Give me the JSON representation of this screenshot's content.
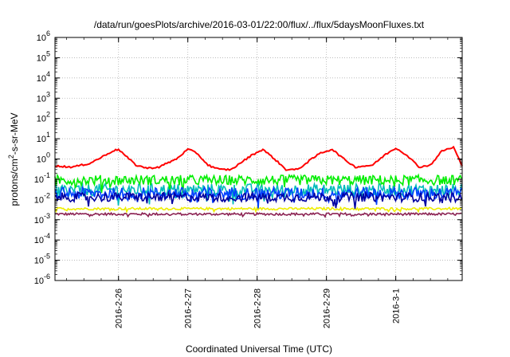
{
  "chart_data": {
    "type": "line",
    "title": "/data/run/goesPlots/archive/2016-03-01/22:00/flux/../flux/5daysMoonFluxes.txt",
    "xlabel": "Coordinated Universal Time (UTC)",
    "ylabel": {
      "base": "protons/cm",
      "sup": "2",
      "rest": "-s-sr-MeV"
    },
    "yscale": "log",
    "ylim": [
      1e-06,
      1000000.0
    ],
    "xlim": [
      "2016-02-25 02:00",
      "2016-03-01 23:00"
    ],
    "x_ticks": [
      "2016-2-26",
      "2016-2-27",
      "2016-2-28",
      "2016-2-29",
      "2016-3-1"
    ],
    "y_ticks": [
      {
        "base": "10",
        "exp": "-6",
        "value": 1e-06
      },
      {
        "base": "10",
        "exp": "-5",
        "value": 1e-05
      },
      {
        "base": "10",
        "exp": "-4",
        "value": 0.0001
      },
      {
        "base": "10",
        "exp": "-3",
        "value": 0.001
      },
      {
        "base": "10",
        "exp": "-2",
        "value": 0.01
      },
      {
        "base": "10",
        "exp": "-1",
        "value": 0.1
      },
      {
        "base": "10",
        "exp": "0",
        "value": 1
      },
      {
        "base": "10",
        "exp": "1",
        "value": 10
      },
      {
        "base": "10",
        "exp": "2",
        "value": 100
      },
      {
        "base": "10",
        "exp": "3",
        "value": 1000
      },
      {
        "base": "10",
        "exp": "4",
        "value": 10000
      },
      {
        "base": "10",
        "exp": "5",
        "value": 100000
      },
      {
        "base": "10",
        "exp": "6",
        "value": 1000000
      }
    ],
    "grid": true,
    "legend": "none",
    "series": [
      {
        "color": "#ff0000",
        "points": [
          [
            "2016-02-25 02:00",
            0.45
          ],
          [
            "2016-02-25 08:00",
            0.4
          ],
          [
            "2016-02-25 14:00",
            0.6
          ],
          [
            "2016-02-25 18:00",
            1.2
          ],
          [
            "2016-02-25 22:00",
            2.5
          ],
          [
            "2016-02-26 00:00",
            3.0
          ],
          [
            "2016-02-26 03:00",
            1.2
          ],
          [
            "2016-02-26 06:00",
            0.5
          ],
          [
            "2016-02-26 10:00",
            0.35
          ],
          [
            "2016-02-26 14:00",
            0.4
          ],
          [
            "2016-02-26 20:00",
            1.0
          ],
          [
            "2016-02-27 00:00",
            3.0
          ],
          [
            "2016-02-27 03:00",
            2.0
          ],
          [
            "2016-02-27 07:00",
            0.5
          ],
          [
            "2016-02-27 11:00",
            0.3
          ],
          [
            "2016-02-27 15:00",
            0.3
          ],
          [
            "2016-02-27 18:00",
            0.6
          ],
          [
            "2016-02-27 22:00",
            1.5
          ],
          [
            "2016-02-28 02:00",
            3.0
          ],
          [
            "2016-02-28 06:00",
            1.0
          ],
          [
            "2016-02-28 10:00",
            0.3
          ],
          [
            "2016-02-28 14:00",
            0.3
          ],
          [
            "2016-02-28 18:00",
            0.8
          ],
          [
            "2016-02-28 22:00",
            2.0
          ],
          [
            "2016-02-29 02:00",
            3.0
          ],
          [
            "2016-02-29 06:00",
            1.0
          ],
          [
            "2016-02-29 10:00",
            0.4
          ],
          [
            "2016-02-29 16:00",
            0.5
          ],
          [
            "2016-02-29 20:00",
            1.5
          ],
          [
            "2016-03-01 00:00",
            3.5
          ],
          [
            "2016-03-01 04:00",
            1.5
          ],
          [
            "2016-03-01 08:00",
            0.4
          ],
          [
            "2016-03-01 12:00",
            0.5
          ],
          [
            "2016-03-01 16:00",
            2.5
          ],
          [
            "2016-03-01 20:00",
            3.8
          ],
          [
            "2016-03-01 23:00",
            0.45
          ]
        ]
      },
      {
        "color": "#00ee00",
        "level": 0.09,
        "spread": 0.5
      },
      {
        "color": "#00bbbb",
        "level": 0.03,
        "spread": 0.6
      },
      {
        "color": "#0040ff",
        "level": 0.02,
        "spread": 0.6
      },
      {
        "color": "#0000a0",
        "level": 0.013,
        "spread": 0.45
      },
      {
        "color": "#eeee00",
        "level": 0.0035,
        "spread": 0.12
      },
      {
        "color": "#8b2252",
        "level": 0.0019,
        "spread": 0.12
      }
    ]
  }
}
